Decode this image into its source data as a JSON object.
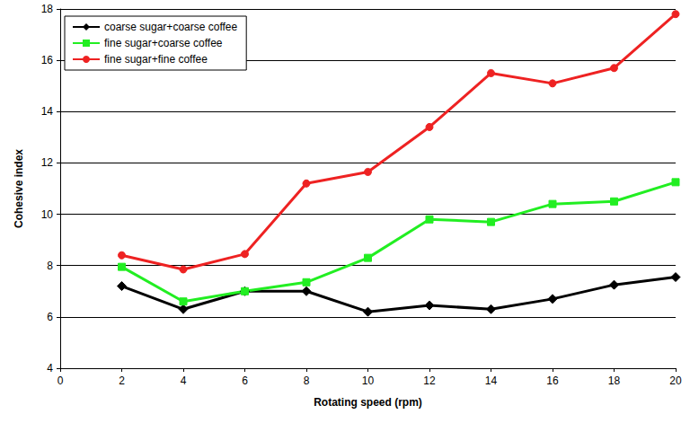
{
  "chart_data": {
    "type": "line",
    "x_label": "Rotating speed (rpm)",
    "y_label": "Cohesive index",
    "x": [
      2,
      4,
      6,
      8,
      10,
      12,
      14,
      16,
      18,
      20
    ],
    "series": [
      {
        "name": "coarse sugar+coarse coffee",
        "color": "#000000",
        "marker": "diamond",
        "values": [
          7.2,
          6.3,
          7.0,
          7.0,
          6.2,
          6.45,
          6.3,
          6.7,
          7.25,
          7.55
        ]
      },
      {
        "name": "fine sugar+coarse coffee",
        "color": "#22ee22",
        "marker": "square",
        "values": [
          7.95,
          6.6,
          7.0,
          7.35,
          8.3,
          9.8,
          9.7,
          10.4,
          10.5,
          11.25
        ]
      },
      {
        "name": "fine sugar+fine coffee",
        "color": "#ee2222",
        "marker": "circle",
        "values": [
          8.4,
          7.85,
          8.45,
          11.2,
          11.65,
          13.4,
          15.5,
          15.1,
          15.7,
          17.8
        ]
      }
    ],
    "xlim": [
      0,
      20
    ],
    "xticks": [
      0,
      2,
      4,
      6,
      8,
      10,
      12,
      14,
      16,
      18,
      20
    ],
    "ylim": [
      4,
      18
    ],
    "yticks": [
      4,
      6,
      8,
      10,
      12,
      14,
      16,
      18
    ],
    "grid": true,
    "legend": "upper left"
  }
}
